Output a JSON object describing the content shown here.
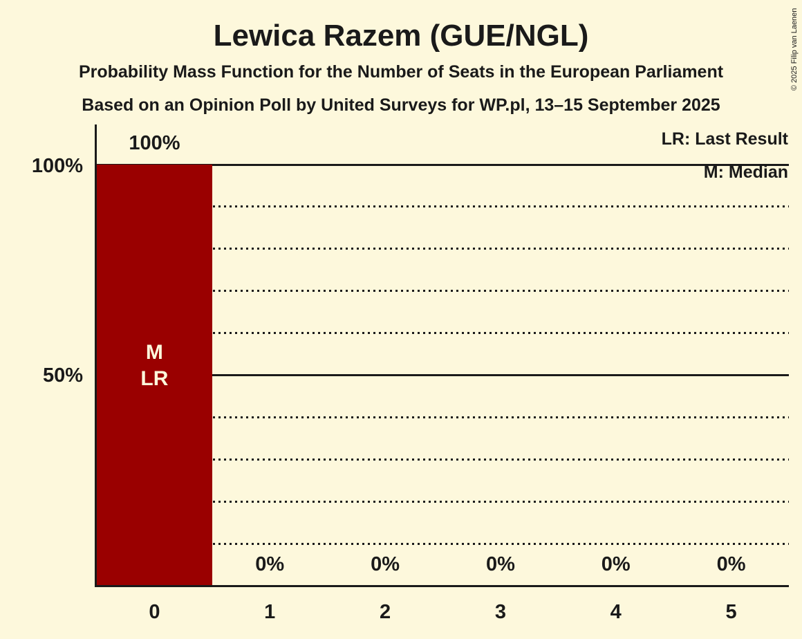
{
  "title": "Lewica Razem (GUE/NGL)",
  "subtitle_line1": "Probability Mass Function for the Number of Seats in the European Parliament",
  "subtitle_line2": "Based on an Opinion Poll by United Surveys for WP.pl, 13–15 September 2025",
  "copyright": "© 2025 Filip van Laenen",
  "legend": {
    "lr": "LR: Last Result",
    "m": "M: Median"
  },
  "colors": {
    "background": "#fdf8dc",
    "bar": "#9a0000",
    "text": "#1a1a1a"
  },
  "chart_data": {
    "type": "bar",
    "title": "Lewica Razem (GUE/NGL)",
    "categories": [
      "0",
      "1",
      "2",
      "3",
      "4",
      "5"
    ],
    "values": [
      100,
      0,
      0,
      0,
      0,
      0
    ],
    "value_labels": [
      "100%",
      "0%",
      "0%",
      "0%",
      "0%",
      "0%"
    ],
    "ylim": [
      0,
      100
    ],
    "y_axis_labels": [
      {
        "pct": 100,
        "text": "100%"
      },
      {
        "pct": 50,
        "text": "50%"
      }
    ],
    "gridlines_solid_pct": [
      100,
      50
    ],
    "gridlines_dotted_pct": [
      90,
      80,
      70,
      60,
      40,
      30,
      20,
      10
    ],
    "annotated_category_index": 0,
    "bar_annotation_lines": [
      "M",
      "LR"
    ],
    "legend_position": "top-right",
    "grid": "horizontal"
  }
}
